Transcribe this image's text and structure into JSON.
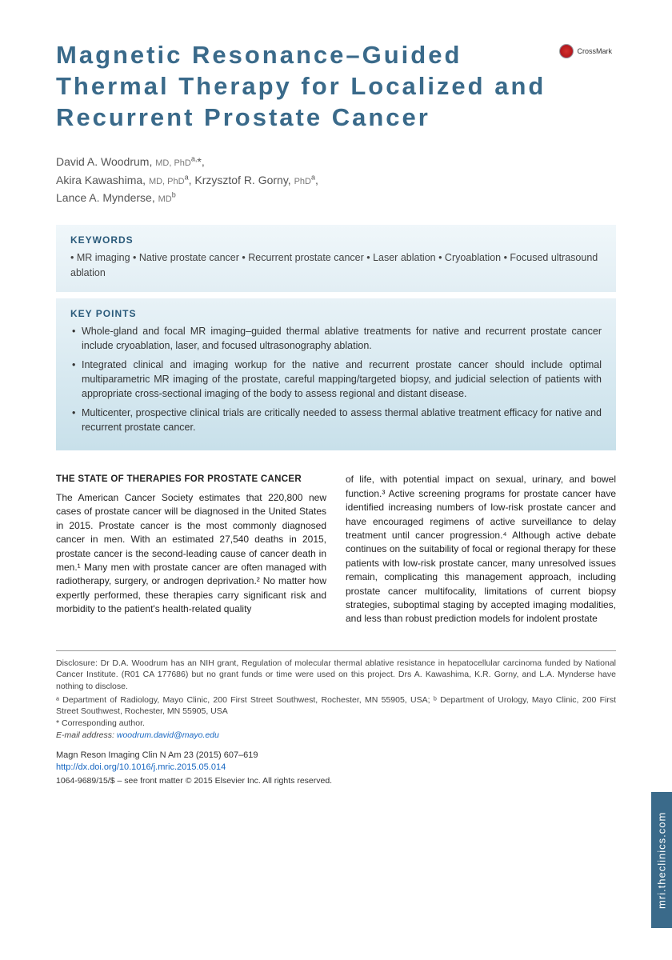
{
  "title": "Magnetic Resonance–Guided Thermal Therapy for Localized and Recurrent Prostate Cancer",
  "crossmark_label": "CrossMark",
  "authors": [
    {
      "name": "David A. Woodrum",
      "degrees": "MD, PhD",
      "affil": "a,",
      "corr": "*"
    },
    {
      "name": "Akira Kawashima",
      "degrees": "MD, PhD",
      "affil": "a",
      "corr": ""
    },
    {
      "name": "Krzysztof R. Gorny",
      "degrees": "PhD",
      "affil": "a",
      "corr": ""
    },
    {
      "name": "Lance A. Mynderse",
      "degrees": "MD",
      "affil": "b",
      "corr": ""
    }
  ],
  "keywords_title": "KEYWORDS",
  "keywords": "• MR imaging • Native prostate cancer • Recurrent prostate cancer • Laser ablation • Cryoablation • Focused ultrasound ablation",
  "keypoints_title": "KEY POINTS",
  "keypoints": [
    "Whole-gland and focal MR imaging–guided thermal ablative treatments for native and recurrent prostate cancer include cryoablation, laser, and focused ultrasonography ablation.",
    "Integrated clinical and imaging workup for the native and recurrent prostate cancer should include optimal multiparametric MR imaging of the prostate, careful mapping/targeted biopsy, and judicial selection of patients with appropriate cross-sectional imaging of the body to assess regional and distant disease.",
    "Multicenter, prospective clinical trials are critically needed to assess thermal ablative treatment efficacy for native and recurrent prostate cancer."
  ],
  "section_heading": "THE STATE OF THERAPIES FOR PROSTATE CANCER",
  "body_col1": "The American Cancer Society estimates that 220,800 new cases of prostate cancer will be diagnosed in the United States in 2015. Prostate cancer is the most commonly diagnosed cancer in men. With an estimated 27,540 deaths in 2015, prostate cancer is the second-leading cause of cancer death in men.¹ Many men with prostate cancer are often managed with radiotherapy, surgery, or androgen deprivation.² No matter how expertly performed, these therapies carry significant risk and morbidity to the patient's health-related quality",
  "body_col2": "of life, with potential impact on sexual, urinary, and bowel function.³ Active screening programs for prostate cancer have identified increasing numbers of low-risk prostate cancer and have encouraged regimens of active surveillance to delay treatment until cancer progression.⁴ Although active debate continues on the suitability of focal or regional therapy for these patients with low-risk prostate cancer, many unresolved issues remain, complicating this management approach, including prostate cancer multifocality, limitations of current biopsy strategies, suboptimal staging by accepted imaging modalities, and less than robust prediction models for indolent prostate",
  "disclosure": "Disclosure: Dr D.A. Woodrum has an NIH grant, Regulation of molecular thermal ablative resistance in hepatocellular carcinoma funded by National Cancer Institute. (R01 CA 177686) but no grant funds or time were used on this project. Drs A. Kawashima, K.R. Gorny, and L.A. Mynderse have nothing to disclose.",
  "affiliations": "ᵃ Department of Radiology, Mayo Clinic, 200 First Street Southwest, Rochester, MN 55905, USA; ᵇ Department of Urology, Mayo Clinic, 200 First Street Southwest, Rochester, MN 55905, USA",
  "corresponding": "* Corresponding author.",
  "email_label": "E-mail address:",
  "email": "woodrum.david@mayo.edu",
  "journal": "Magn Reson Imaging Clin N Am 23 (2015) 607–619",
  "doi": "http://dx.doi.org/10.1016/j.mric.2015.05.014",
  "copyright": "1064-9689/15/$ – see front matter © 2015 Elsevier Inc. All rights reserved.",
  "side_tab": "mri.theclinics.com",
  "colors": {
    "title": "#3a6a8a",
    "box_heading": "#2a5a7a",
    "link": "#1565c0",
    "tab_bg": "#3a6a8a"
  }
}
